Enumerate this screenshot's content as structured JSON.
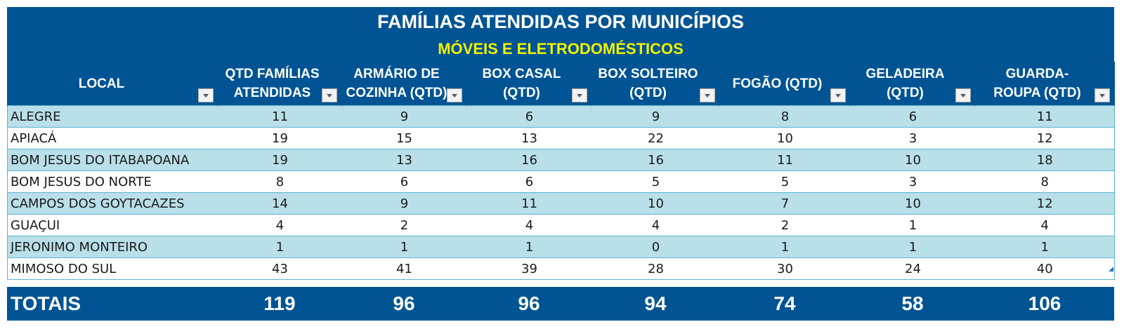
{
  "title": "FAMÍLIAS ATENDIDAS POR MUNICÍPIOS",
  "subtitle": "MÓVEIS E ELETRODOMÉSTICOS",
  "columns": [
    {
      "line1": "LOCAL",
      "line2": ""
    },
    {
      "line1": "QTD FAMÍLIAS",
      "line2": "ATENDIDAS"
    },
    {
      "line1": "ARMÁRIO DE",
      "line2": "COZINHA (QTD)"
    },
    {
      "line1": "BOX CASAL",
      "line2": "(QTD)"
    },
    {
      "line1": "BOX SOLTEIRO",
      "line2": "(QTD)"
    },
    {
      "line1": "FOGÃO (QTD)",
      "line2": ""
    },
    {
      "line1": "GELADEIRA",
      "line2": "(QTD)"
    },
    {
      "line1": "GUARDA-",
      "line2": "ROUPA (QTD)"
    }
  ],
  "rows": [
    [
      "ALEGRE",
      "11",
      "9",
      "6",
      "9",
      "8",
      "6",
      "11"
    ],
    [
      "APIACÁ",
      "19",
      "15",
      "13",
      "22",
      "10",
      "3",
      "12"
    ],
    [
      "BOM JESUS DO ITABAPOANA",
      "19",
      "13",
      "16",
      "16",
      "11",
      "10",
      "18"
    ],
    [
      "BOM JESUS DO NORTE",
      "8",
      "6",
      "6",
      "5",
      "5",
      "3",
      "8"
    ],
    [
      "CAMPOS DOS GOYTACAZES",
      "14",
      "9",
      "11",
      "10",
      "7",
      "10",
      "12"
    ],
    [
      "GUAÇUI",
      "4",
      "2",
      "4",
      "4",
      "2",
      "1",
      "4"
    ],
    [
      "JERONIMO MONTEIRO",
      "1",
      "1",
      "1",
      "0",
      "1",
      "1",
      "1"
    ],
    [
      "MIMOSO DO SUL",
      "43",
      "41",
      "39",
      "28",
      "30",
      "24",
      "40"
    ]
  ],
  "totals": {
    "label": "TOTAIS",
    "values": [
      "119",
      "96",
      "96",
      "94",
      "74",
      "58",
      "106"
    ]
  },
  "colors": {
    "header_bg": "#005493",
    "subtitle_text": "#f2f200",
    "band_row": "#b9dfe9",
    "row_border": "#5ab4d2"
  },
  "icons": {
    "filter_button": "dropdown-arrow-icon"
  }
}
